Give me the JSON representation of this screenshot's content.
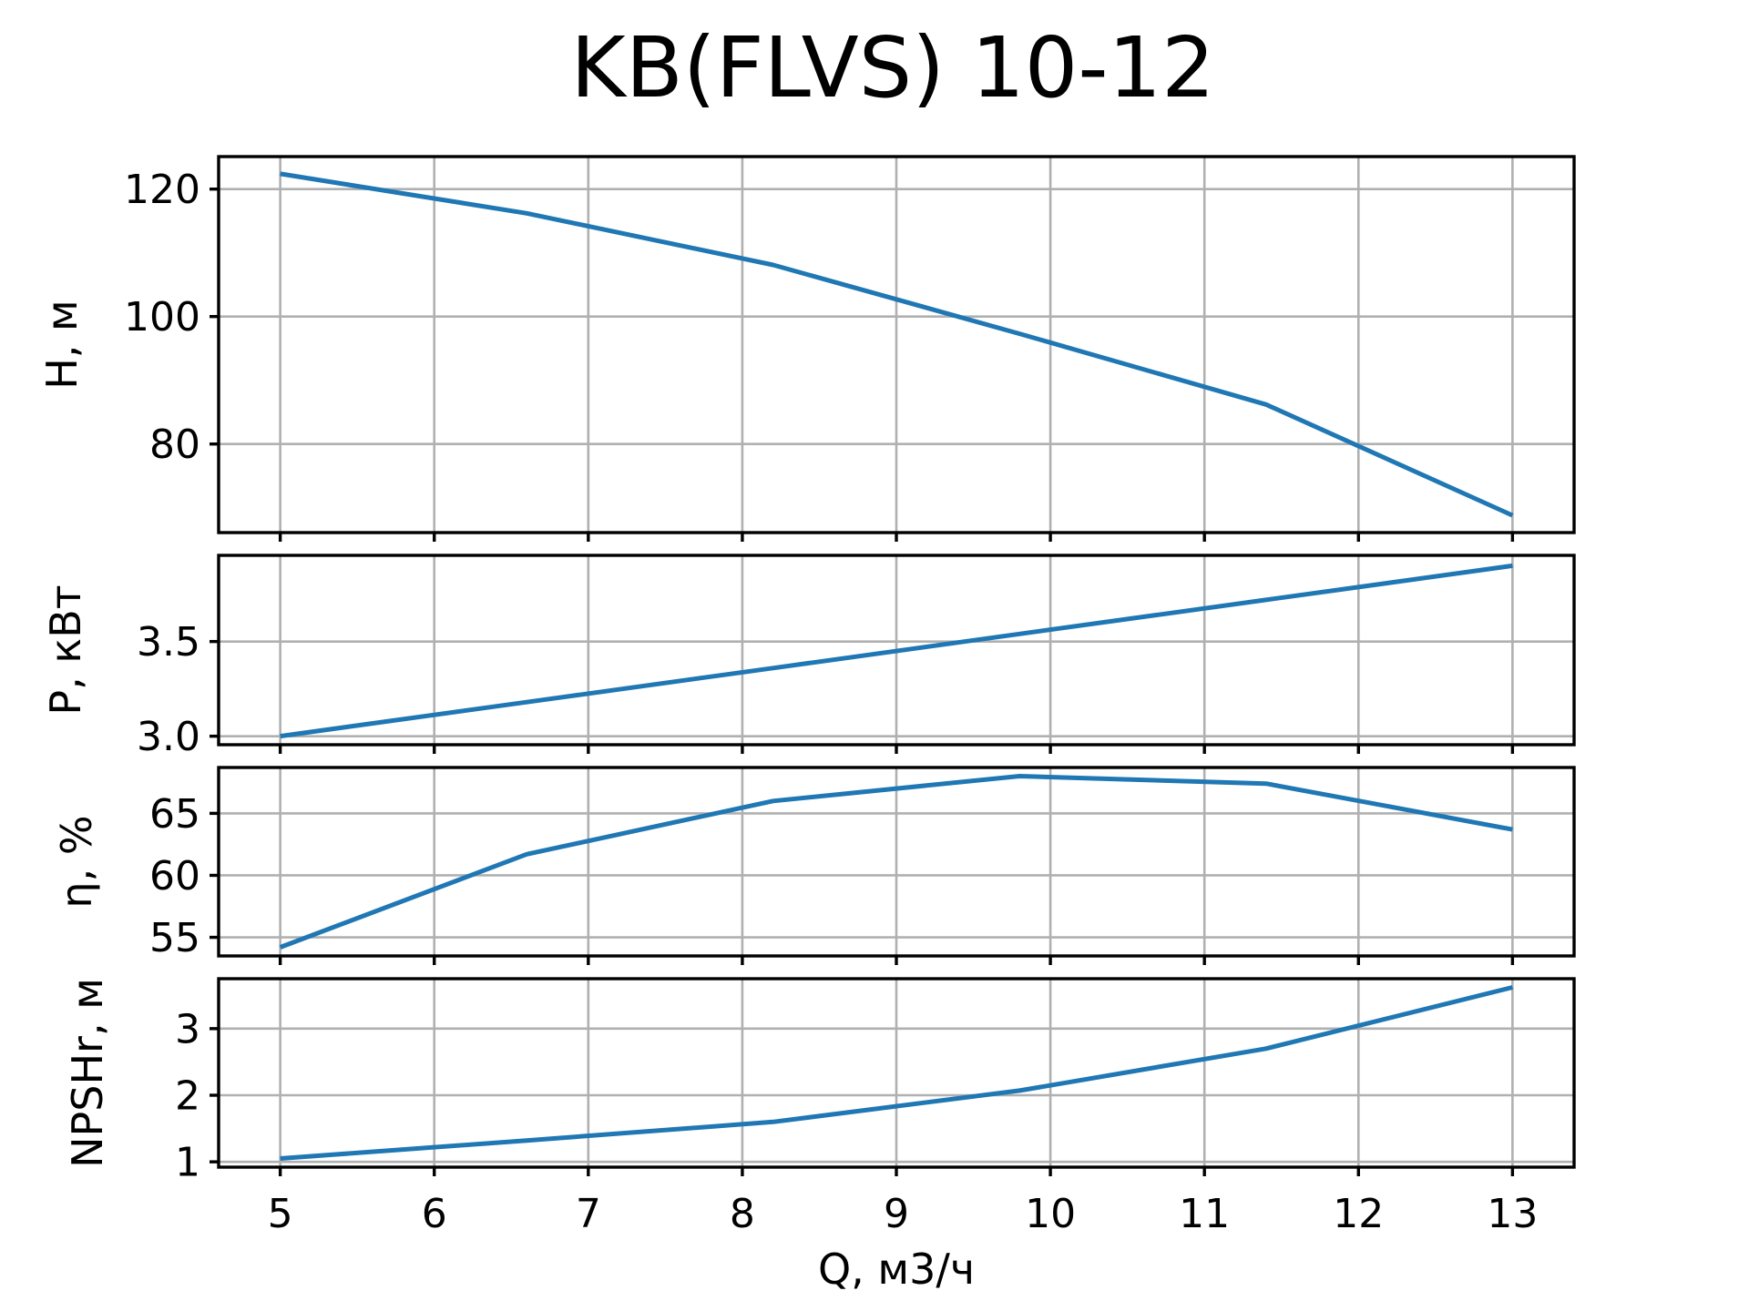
{
  "title": "KB(FLVS) 10-12",
  "colors": {
    "line": "#1f77b4",
    "grid": "#b0b0b0",
    "spine": "#000000",
    "text": "#000000",
    "background": "#ffffff"
  },
  "x_axis": {
    "label": "Q, м3/ч",
    "lim": [
      4.6,
      13.4
    ],
    "ticks": [
      5,
      6,
      7,
      8,
      9,
      10,
      11,
      12,
      13
    ],
    "tick_labels": [
      "5",
      "6",
      "7",
      "8",
      "9",
      "10",
      "11",
      "12",
      "13"
    ]
  },
  "chart_data": [
    {
      "type": "line",
      "name": "head-curve",
      "ylabel": "H, м",
      "x": [
        5,
        6.6,
        8.2,
        9.8,
        11.4,
        13
      ],
      "y": [
        122.4,
        116.2,
        108.1,
        97.3,
        86.2,
        68.8
      ],
      "ylim": [
        66.1,
        125.1
      ],
      "yticks": [
        80,
        100,
        120
      ],
      "ytick_labels": [
        "80",
        "100",
        "120"
      ],
      "grid": true,
      "legend": "none"
    },
    {
      "type": "line",
      "name": "power-curve",
      "ylabel": "P, кВт",
      "x": [
        5,
        6.6,
        8.2,
        9.8,
        11.4,
        13
      ],
      "y": [
        3.0,
        3.18,
        3.36,
        3.54,
        3.72,
        3.9
      ],
      "ylim": [
        2.955,
        3.955
      ],
      "yticks": [
        3.0,
        3.5
      ],
      "ytick_labels": [
        "3.0",
        "3.5"
      ],
      "grid": true,
      "legend": "none"
    },
    {
      "type": "line",
      "name": "efficiency-curve",
      "ylabel": "η, %",
      "x": [
        5,
        6.6,
        8.2,
        9.8,
        11.4,
        13
      ],
      "y": [
        54.2,
        61.7,
        66.0,
        68.0,
        67.4,
        63.7
      ],
      "ylim": [
        53.5,
        68.7
      ],
      "yticks": [
        55,
        60,
        65
      ],
      "ytick_labels": [
        "55",
        "60",
        "65"
      ],
      "grid": true,
      "legend": "none"
    },
    {
      "type": "line",
      "name": "npshr-curve",
      "ylabel": "NPSHr, м",
      "x": [
        5,
        6.6,
        8.2,
        9.8,
        11.4,
        13
      ],
      "y": [
        1.05,
        1.32,
        1.6,
        2.07,
        2.7,
        3.62
      ],
      "ylim": [
        0.92,
        3.75
      ],
      "yticks": [
        1,
        2,
        3
      ],
      "ytick_labels": [
        "1",
        "2",
        "3"
      ],
      "grid": true,
      "legend": "none"
    }
  ]
}
